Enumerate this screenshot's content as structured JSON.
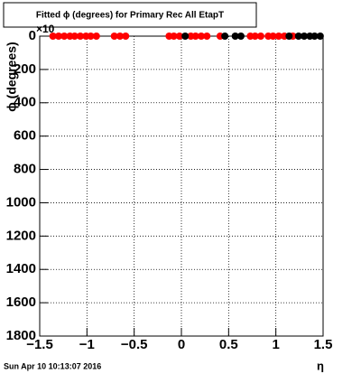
{
  "chart_data": {
    "type": "scatter",
    "title": "Fitted ϕ (degrees) for Primary Rec All EtapT",
    "x_label": "η",
    "y_label": "ϕ (degrees)",
    "y_exponent": "×10",
    "timestamp": "Sun Apr 10 10:13:07 2016",
    "xlim": [
      -1.5,
      1.5
    ],
    "xticks": [
      {
        "value": -1.5,
        "label": "−1.5"
      },
      {
        "value": -1,
        "label": "−1"
      },
      {
        "value": -0.5,
        "label": "−0.5"
      },
      0,
      0.5,
      1,
      1.5
    ],
    "ylim": [
      1800,
      0
    ],
    "yticks": [
      0,
      200,
      400,
      600,
      800,
      1000,
      1200,
      1400,
      1600,
      1800
    ],
    "grid": true,
    "series": [
      {
        "color": "#ff0000",
        "x": [
          -1.36,
          -1.3,
          -1.24,
          -1.18,
          -1.13,
          -1.07,
          -1.01,
          -0.96,
          -0.9,
          -0.71,
          -0.65,
          -0.59,
          -0.13,
          -0.08,
          -0.02,
          0.1,
          0.15,
          0.21,
          0.27,
          0.41,
          0.73,
          0.78,
          0.84,
          0.92,
          0.97,
          1.03,
          1.09,
          1.18
        ],
        "values": [
          0,
          0,
          0,
          0,
          0,
          0,
          0,
          0,
          0,
          0,
          0,
          0,
          0,
          0,
          0,
          0,
          0,
          0,
          0,
          0,
          0,
          0,
          0,
          0,
          0,
          0,
          0,
          0
        ]
      },
      {
        "color": "#000000",
        "x": [
          0.04,
          0.46,
          0.57,
          0.63,
          1.14,
          1.24,
          1.3,
          1.36,
          1.41,
          1.47
        ],
        "values": [
          0,
          0,
          0,
          0,
          0,
          0,
          0,
          0,
          0,
          0
        ]
      }
    ]
  }
}
